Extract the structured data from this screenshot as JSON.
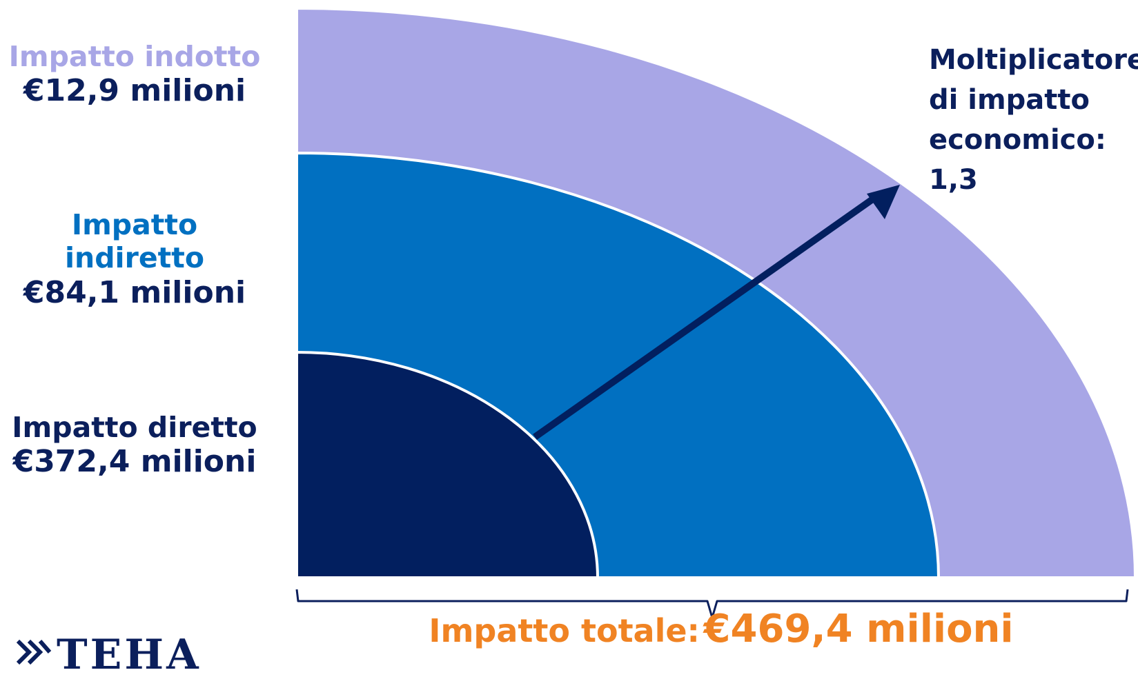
{
  "colors": {
    "indotto": "#a8a6e6",
    "indiretto": "#0170c1",
    "diretto": "#021f5f",
    "text_dark": "#0b1f5c",
    "total": "#f08323"
  },
  "labels": {
    "indotto_title": "Impatto indotto",
    "indotto_value": "€12,9 milioni",
    "indiretto_title": "Impatto indiretto",
    "indiretto_value": "€84,1 milioni",
    "diretto_title": "Impatto diretto",
    "diretto_value": "€372,4 milioni"
  },
  "multiplier": {
    "line1": "Moltiplicatore",
    "line2": "di impatto",
    "line3": "economico:",
    "line4": "1,3"
  },
  "total": {
    "label": "Impatto totale:",
    "value": "€469,4 milioni"
  },
  "logo": {
    "text": "TEHA",
    "icon": "teha-logo-icon"
  },
  "chart_data": {
    "type": "nested-quarter-circle",
    "series": [
      {
        "name": "Impatto diretto",
        "value": 372.4,
        "color": "#021f5f"
      },
      {
        "name": "Impatto indiretto",
        "value": 84.1,
        "color": "#0170c1"
      },
      {
        "name": "Impatto indotto",
        "value": 12.9,
        "color": "#a8a6e6"
      }
    ],
    "total": 469.4,
    "multiplier": 1.3,
    "unit": "€ milioni"
  }
}
